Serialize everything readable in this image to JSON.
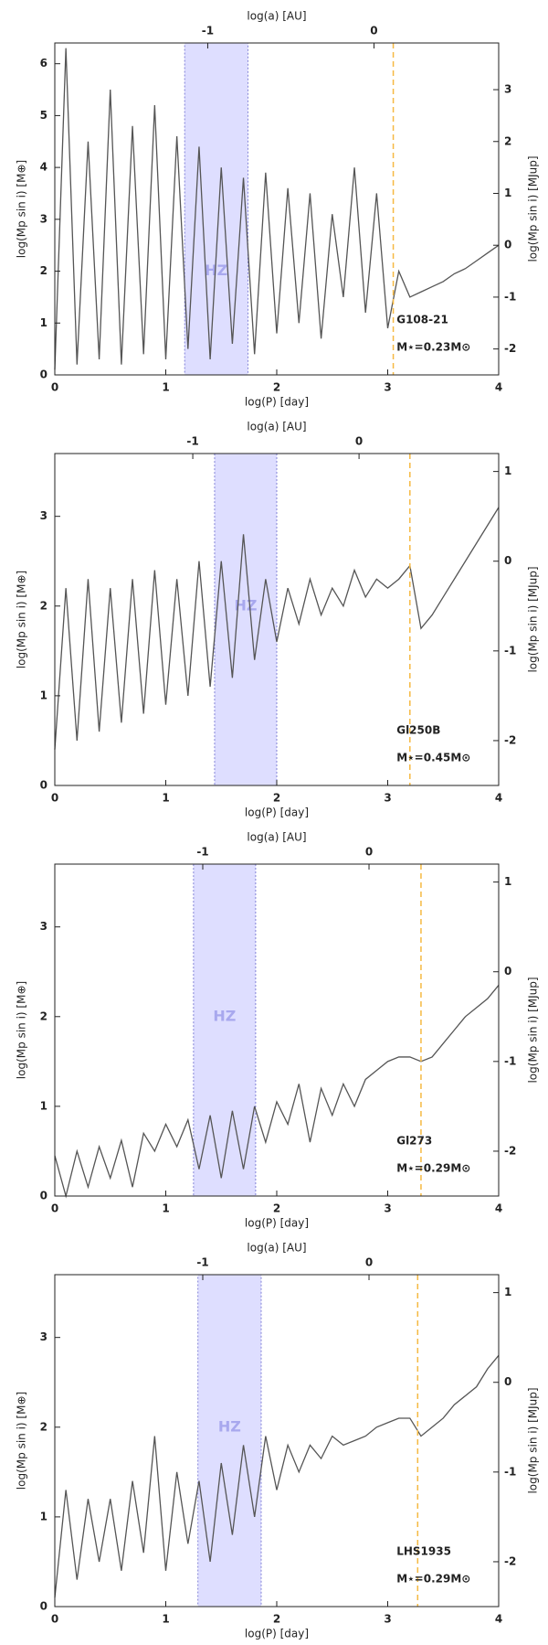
{
  "chart_data": [
    {
      "type": "line",
      "x2label": "log(a) [AU]",
      "xlabel": "log(P) [day]",
      "ylabel": "log(Mp sin i) [M⊕]",
      "y2label": "log(Mp sin i) [MJup]",
      "x": [
        0,
        0.1,
        0.2,
        0.3,
        0.4,
        0.5,
        0.6,
        0.7,
        0.8,
        0.9,
        1.0,
        1.1,
        1.2,
        1.3,
        1.4,
        1.5,
        1.6,
        1.7,
        1.8,
        1.9,
        2.0,
        2.1,
        2.2,
        2.3,
        2.4,
        2.5,
        2.6,
        2.7,
        2.8,
        2.9,
        3.0,
        3.1,
        3.2,
        3.3,
        3.4,
        3.5,
        3.6,
        3.7,
        3.8,
        3.9,
        4.0
      ],
      "values": [
        0.1,
        6.3,
        0.2,
        4.5,
        0.3,
        5.5,
        0.2,
        4.8,
        0.4,
        5.2,
        0.3,
        4.6,
        0.5,
        4.4,
        0.3,
        4.0,
        0.6,
        3.8,
        0.4,
        3.9,
        0.8,
        3.6,
        1.0,
        3.5,
        0.7,
        3.1,
        1.5,
        4.0,
        1.2,
        3.5,
        0.9,
        2.0,
        1.5,
        1.6,
        1.7,
        1.8,
        1.95,
        2.05,
        2.2,
        2.35,
        2.5
      ],
      "color": "#555555",
      "xlim": [
        0,
        4
      ],
      "xticks": [
        0,
        1,
        2,
        3,
        4
      ],
      "ylim": [
        0,
        6.4
      ],
      "yticks": [
        0,
        1,
        2,
        3,
        4,
        5,
        6
      ],
      "y2lim": [
        -2.5,
        3.9
      ],
      "y2ticks": [
        -2,
        -1,
        0,
        1,
        2,
        3
      ],
      "x2lim": [
        -1.92,
        0.75
      ],
      "x2ticks": [
        -1,
        0
      ],
      "hz": [
        1.17,
        1.74
      ],
      "hz_label": "HZ",
      "hz_color": "#c8c8ff",
      "dashed_x": 3.05,
      "dashed_color": "#f5b942",
      "annotations": [
        "G108-21",
        "M⋆=0.23M⊙"
      ]
    },
    {
      "type": "line",
      "x2label": "log(a) [AU]",
      "xlabel": "log(P) [day]",
      "ylabel": "log(Mp sin i) [M⊕]",
      "y2label": "log(Mp sin i) [MJup]",
      "x": [
        0,
        0.1,
        0.2,
        0.3,
        0.4,
        0.5,
        0.6,
        0.7,
        0.8,
        0.9,
        1.0,
        1.1,
        1.2,
        1.3,
        1.4,
        1.5,
        1.6,
        1.7,
        1.8,
        1.9,
        2.0,
        2.1,
        2.2,
        2.3,
        2.4,
        2.5,
        2.6,
        2.7,
        2.8,
        2.9,
        3.0,
        3.1,
        3.2,
        3.3,
        3.4,
        3.5,
        3.6,
        3.7,
        3.8,
        3.9,
        4.0
      ],
      "values": [
        0.4,
        2.2,
        0.5,
        2.3,
        0.6,
        2.2,
        0.7,
        2.3,
        0.8,
        2.4,
        0.9,
        2.3,
        1.0,
        2.5,
        1.1,
        2.5,
        1.2,
        2.8,
        1.4,
        2.3,
        1.6,
        2.2,
        1.8,
        2.3,
        1.9,
        2.2,
        2.0,
        2.4,
        2.1,
        2.3,
        2.2,
        2.3,
        2.45,
        1.75,
        1.9,
        2.1,
        2.3,
        2.5,
        2.7,
        2.9,
        3.1
      ],
      "color": "#555555",
      "xlim": [
        0,
        4
      ],
      "xticks": [
        0,
        1,
        2,
        3,
        4
      ],
      "ylim": [
        0,
        3.7
      ],
      "yticks": [
        0,
        1,
        2,
        3
      ],
      "y2lim": [
        -2.5,
        1.2
      ],
      "y2ticks": [
        -2,
        -1,
        0,
        1
      ],
      "x2lim": [
        -1.83,
        0.84
      ],
      "x2ticks": [
        -1,
        0
      ],
      "hz": [
        1.44,
        2.0
      ],
      "hz_label": "HZ",
      "hz_color": "#c8c8ff",
      "dashed_x": 3.2,
      "dashed_color": "#f5b942",
      "annotations": [
        "Gl250B",
        "M⋆=0.45M⊙"
      ]
    },
    {
      "type": "line",
      "x2label": "log(a) [AU]",
      "xlabel": "log(P) [day]",
      "ylabel": "log(Mp sin i) [M⊕]",
      "y2label": "log(Mp sin i) [MJup]",
      "x": [
        0,
        0.1,
        0.2,
        0.3,
        0.4,
        0.5,
        0.6,
        0.7,
        0.8,
        0.9,
        1.0,
        1.1,
        1.2,
        1.3,
        1.4,
        1.5,
        1.6,
        1.7,
        1.8,
        1.9,
        2.0,
        2.1,
        2.2,
        2.3,
        2.4,
        2.5,
        2.6,
        2.7,
        2.8,
        2.9,
        3.0,
        3.1,
        3.2,
        3.3,
        3.4,
        3.5,
        3.6,
        3.7,
        3.8,
        3.9,
        4.0
      ],
      "values": [
        0.45,
        0.0,
        0.5,
        0.1,
        0.55,
        0.2,
        0.62,
        0.1,
        0.7,
        0.5,
        0.8,
        0.55,
        0.85,
        0.3,
        0.9,
        0.2,
        0.95,
        0.3,
        1.0,
        0.6,
        1.05,
        0.8,
        1.25,
        0.6,
        1.2,
        0.9,
        1.25,
        1.0,
        1.3,
        1.4,
        1.5,
        1.55,
        1.55,
        1.5,
        1.55,
        1.7,
        1.85,
        2.0,
        2.1,
        2.2,
        2.35
      ],
      "color": "#555555",
      "xlim": [
        0,
        4
      ],
      "xticks": [
        0,
        1,
        2,
        3,
        4
      ],
      "ylim": [
        0,
        3.7
      ],
      "yticks": [
        0,
        1,
        2,
        3
      ],
      "y2lim": [
        -2.5,
        1.2
      ],
      "y2ticks": [
        -2,
        -1,
        0,
        1
      ],
      "x2lim": [
        -1.89,
        0.78
      ],
      "x2ticks": [
        -1,
        0
      ],
      "hz": [
        1.25,
        1.81
      ],
      "hz_label": "HZ",
      "hz_color": "#c8c8ff",
      "dashed_x": 3.3,
      "dashed_color": "#f5b942",
      "annotations": [
        "Gl273",
        "M⋆=0.29M⊙"
      ]
    },
    {
      "type": "line",
      "x2label": "log(a) [AU]",
      "xlabel": "log(P) [day]",
      "ylabel": "log(Mp sin i) [M⊕]",
      "y2label": "log(Mp sin i) [MJup]",
      "x": [
        0,
        0.1,
        0.2,
        0.3,
        0.4,
        0.5,
        0.6,
        0.7,
        0.8,
        0.9,
        1.0,
        1.1,
        1.2,
        1.3,
        1.4,
        1.5,
        1.6,
        1.7,
        1.8,
        1.9,
        2.0,
        2.1,
        2.2,
        2.3,
        2.4,
        2.5,
        2.6,
        2.7,
        2.8,
        2.9,
        3.0,
        3.1,
        3.2,
        3.3,
        3.4,
        3.5,
        3.6,
        3.7,
        3.8,
        3.9,
        4.0
      ],
      "values": [
        0.1,
        1.3,
        0.3,
        1.2,
        0.5,
        1.2,
        0.4,
        1.4,
        0.6,
        1.9,
        0.4,
        1.5,
        0.7,
        1.4,
        0.5,
        1.6,
        0.8,
        1.8,
        1.0,
        1.9,
        1.3,
        1.8,
        1.5,
        1.8,
        1.65,
        1.9,
        1.8,
        1.85,
        1.9,
        2.0,
        2.05,
        2.1,
        2.1,
        1.9,
        2.0,
        2.1,
        2.25,
        2.35,
        2.45,
        2.65,
        2.8
      ],
      "color": "#555555",
      "xlim": [
        0,
        4
      ],
      "xticks": [
        0,
        1,
        2,
        3,
        4
      ],
      "ylim": [
        0,
        3.7
      ],
      "yticks": [
        0,
        1,
        2,
        3
      ],
      "y2lim": [
        -2.5,
        1.2
      ],
      "y2ticks": [
        -2,
        -1,
        0,
        1
      ],
      "x2lim": [
        -1.89,
        0.78
      ],
      "x2ticks": [
        -1,
        0
      ],
      "hz": [
        1.29,
        1.86
      ],
      "hz_label": "HZ",
      "hz_color": "#c8c8ff",
      "dashed_x": 3.27,
      "dashed_color": "#f5b942",
      "annotations": [
        "LHS1935",
        "M⋆=0.29M⊙"
      ]
    }
  ]
}
